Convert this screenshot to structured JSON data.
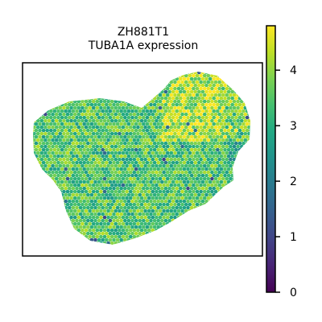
{
  "chart_data": {
    "type": "heatmap",
    "title": "ZH881T1\nTUBA1A expression",
    "colormap": "viridis",
    "colorbar": {
      "min": 0,
      "max": 4.8,
      "ticks": [
        0,
        1,
        2,
        3,
        4
      ],
      "tick_labels": [
        "0",
        "1",
        "2",
        "3",
        "4"
      ],
      "placement": "right"
    },
    "value_summary": {
      "typical_range": [
        2.4,
        4.8
      ],
      "spot_minimum_observed": 0.8,
      "high_region": "upper-right lobe"
    },
    "axes": {
      "ticks_shown": false,
      "frame": true
    }
  }
}
